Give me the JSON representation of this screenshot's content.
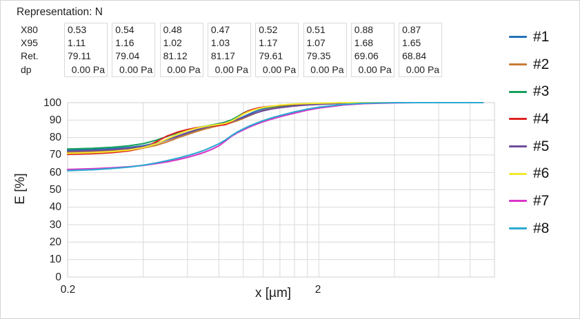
{
  "header": {
    "representation": "Representation: N"
  },
  "table": {
    "row_labels": [
      "X80",
      "X95",
      "Ret.",
      "dp"
    ],
    "columns": [
      {
        "x80": "0.53",
        "x95": "1.11",
        "ret": "79.11",
        "dp": "0.00 Pa"
      },
      {
        "x80": "0.54",
        "x95": "1.16",
        "ret": "79.04",
        "dp": "0.00 Pa"
      },
      {
        "x80": "0.48",
        "x95": "1.02",
        "ret": "81.12",
        "dp": "0.00 Pa"
      },
      {
        "x80": "0.47",
        "x95": "1.03",
        "ret": "81.17",
        "dp": "0.00 Pa"
      },
      {
        "x80": "0.52",
        "x95": "1.17",
        "ret": "79.61",
        "dp": "0.00 Pa"
      },
      {
        "x80": "0.51",
        "x95": "1.07",
        "ret": "79.35",
        "dp": "0.00 Pa"
      },
      {
        "x80": "0.88",
        "x95": "1.68",
        "ret": "69.06",
        "dp": "0.00 Pa"
      },
      {
        "x80": "0.87",
        "x95": "1.65",
        "ret": "68.84",
        "dp": "0.00 Pa"
      }
    ]
  },
  "chart_data": {
    "type": "line",
    "xlabel": "x [µm]",
    "ylabel": "E [%]",
    "xscale": "log",
    "xlim": [
      0.2,
      10
    ],
    "ylim": [
      0,
      100
    ],
    "grid": true,
    "legend_position": "right",
    "yticks": [
      0,
      10,
      20,
      30,
      40,
      50,
      60,
      70,
      80,
      90,
      100
    ],
    "xticks": [
      {
        "value": 0.2,
        "label": "0.2"
      },
      {
        "value": 2,
        "label": "2"
      }
    ],
    "x_gridlines": [
      0.4,
      0.6,
      0.8,
      1.0,
      1.2,
      1.4,
      1.6,
      1.8,
      2.0,
      4.0,
      6.0,
      8.0
    ],
    "x": [
      0.2,
      0.25,
      0.3,
      0.35,
      0.4,
      0.45,
      0.5,
      0.55,
      0.6,
      0.65,
      0.7,
      0.75,
      0.8,
      0.85,
      0.9,
      0.95,
      1.0,
      1.05,
      1.1,
      1.15,
      1.2,
      1.3,
      1.4,
      1.6,
      1.8,
      2.0,
      2.5,
      3.0,
      4.0,
      5.0,
      9.0
    ],
    "series": [
      {
        "name": "#1",
        "color": "#2272b5",
        "values": [
          72.7,
          73.1,
          73.6,
          74.3,
          75.3,
          76.8,
          78.7,
          80.7,
          82.5,
          84.0,
          85.3,
          86.3,
          87.1,
          88.0,
          89.1,
          90.4,
          91.9,
          93.3,
          94.6,
          95.6,
          96.3,
          97.2,
          97.8,
          98.6,
          99.0,
          99.3,
          99.8,
          100,
          100,
          100,
          100
        ]
      },
      {
        "name": "#2",
        "color": "#c87c35",
        "values": [
          71.4,
          71.8,
          72.3,
          73.0,
          74.0,
          75.5,
          77.6,
          79.9,
          81.7,
          83.4,
          84.8,
          85.9,
          86.8,
          87.6,
          88.6,
          89.7,
          91.0,
          92.3,
          93.5,
          94.6,
          95.5,
          96.7,
          97.4,
          98.3,
          98.8,
          99.1,
          99.7,
          100,
          100,
          100,
          100
        ]
      },
      {
        "name": "#3",
        "color": "#13a05b",
        "values": [
          73.4,
          73.8,
          74.4,
          75.2,
          76.5,
          78.4,
          80.7,
          82.7,
          84.3,
          85.5,
          86.4,
          87.2,
          88.0,
          88.9,
          90.2,
          92.0,
          94.0,
          95.4,
          96.2,
          96.7,
          97.1,
          97.7,
          98.1,
          98.7,
          99.1,
          99.4,
          99.8,
          100,
          100,
          100,
          100
        ]
      },
      {
        "name": "#4",
        "color": "#de2221",
        "values": [
          70.3,
          70.7,
          71.3,
          72.3,
          74.0,
          77.5,
          81.0,
          83.2,
          84.6,
          85.6,
          86.2,
          86.6,
          86.9,
          87.4,
          88.8,
          91.3,
          93.8,
          95.3,
          96.3,
          97.0,
          97.4,
          98.0,
          98.4,
          99.0,
          99.3,
          99.6,
          99.9,
          100,
          100,
          100,
          100
        ]
      },
      {
        "name": "#5",
        "color": "#6e4d9b",
        "values": [
          72.1,
          72.5,
          73.0,
          73.8,
          74.9,
          76.5,
          78.8,
          80.9,
          82.8,
          84.4,
          85.7,
          86.8,
          87.6,
          88.4,
          89.3,
          90.3,
          91.4,
          92.6,
          93.7,
          94.6,
          95.3,
          96.4,
          97.1,
          98.1,
          98.7,
          99.0,
          99.6,
          99.9,
          100,
          100,
          100
        ]
      },
      {
        "name": "#6",
        "color": "#f0e92e",
        "values": [
          70.9,
          71.3,
          71.9,
          72.8,
          74.2,
          76.4,
          79.3,
          82.0,
          83.9,
          85.3,
          86.3,
          87.0,
          87.5,
          88.2,
          89.5,
          91.4,
          93.4,
          94.8,
          95.8,
          96.6,
          97.2,
          98.0,
          98.6,
          99.2,
          99.5,
          99.7,
          100,
          100,
          100,
          100,
          100
        ]
      },
      {
        "name": "#7",
        "color": "#d934c9",
        "values": [
          61.7,
          62.1,
          62.6,
          63.2,
          64.0,
          65.0,
          66.1,
          67.3,
          68.6,
          70.0,
          71.5,
          73.2,
          75.2,
          78.0,
          80.8,
          82.8,
          84.3,
          85.8,
          87.0,
          88.1,
          89.0,
          90.6,
          91.9,
          94.0,
          95.7,
          96.9,
          98.6,
          99.4,
          99.9,
          100,
          100
        ]
      },
      {
        "name": "#8",
        "color": "#2ba9d1",
        "values": [
          61.0,
          61.5,
          62.2,
          63.0,
          64.1,
          65.4,
          66.8,
          68.2,
          69.6,
          71.1,
          72.7,
          74.5,
          76.4,
          78.6,
          81.2,
          83.3,
          84.9,
          86.4,
          87.6,
          88.7,
          89.7,
          91.3,
          92.6,
          94.7,
          96.3,
          97.4,
          99.0,
          99.7,
          100,
          100,
          100
        ]
      }
    ]
  },
  "colors": {
    "grid": "#d9d9d9",
    "frame": "#cfcfcf",
    "text": "#1f1f1f",
    "table_border": "#d9d9d9"
  }
}
